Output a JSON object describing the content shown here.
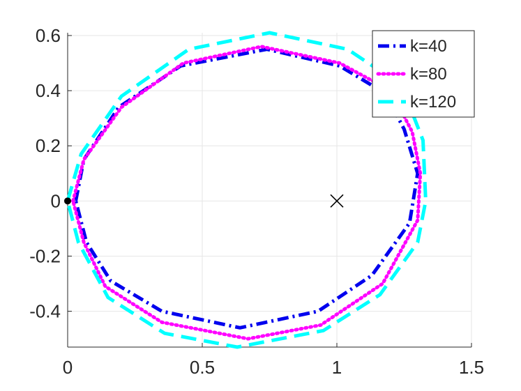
{
  "chart_data": {
    "type": "line",
    "title": "",
    "xlabel": "",
    "ylabel": "",
    "xlim": [
      0,
      1.5
    ],
    "ylim": [
      -0.53,
      0.61
    ],
    "grid": true,
    "legend_position": "top-right",
    "x_ticks": [
      {
        "value": 0,
        "label": "0"
      },
      {
        "value": 0.5,
        "label": "0.5"
      },
      {
        "value": 1,
        "label": "1"
      },
      {
        "value": 1.5,
        "label": "1.5"
      }
    ],
    "y_ticks": [
      {
        "value": -0.4,
        "label": "-0.4"
      },
      {
        "value": -0.2,
        "label": "-0.2"
      },
      {
        "value": 0,
        "label": "0"
      },
      {
        "value": 0.2,
        "label": "0.2"
      },
      {
        "value": 0.4,
        "label": "0.4"
      },
      {
        "value": 0.6,
        "label": "0.6"
      }
    ],
    "series": [
      {
        "name": "k=40",
        "color": "#0000ee",
        "style": "dashdot",
        "points": [
          [
            0.03,
            0.0
          ],
          [
            0.06,
            0.15
          ],
          [
            0.19,
            0.34
          ],
          [
            0.42,
            0.49
          ],
          [
            0.74,
            0.55
          ],
          [
            1.01,
            0.49
          ],
          [
            1.18,
            0.39
          ],
          [
            1.25,
            0.26
          ],
          [
            1.3,
            0.1
          ],
          [
            1.27,
            -0.08
          ],
          [
            1.13,
            -0.27
          ],
          [
            0.93,
            -0.4
          ],
          [
            0.64,
            -0.46
          ],
          [
            0.35,
            -0.4
          ],
          [
            0.16,
            -0.29
          ],
          [
            0.07,
            -0.15
          ],
          [
            0.03,
            0.0
          ]
        ]
      },
      {
        "name": "k=80",
        "color": "#ff00ff",
        "style": "dotted",
        "points": [
          [
            0.02,
            0.0
          ],
          [
            0.06,
            0.15
          ],
          [
            0.2,
            0.34
          ],
          [
            0.43,
            0.5
          ],
          [
            0.72,
            0.56
          ],
          [
            1.01,
            0.5
          ],
          [
            1.2,
            0.4
          ],
          [
            1.28,
            0.25
          ],
          [
            1.31,
            0.1
          ],
          [
            1.3,
            -0.07
          ],
          [
            1.17,
            -0.3
          ],
          [
            0.94,
            -0.45
          ],
          [
            0.67,
            -0.5
          ],
          [
            0.35,
            -0.44
          ],
          [
            0.14,
            -0.31
          ],
          [
            0.06,
            -0.15
          ],
          [
            0.02,
            0.0
          ]
        ]
      },
      {
        "name": "k=120",
        "color": "#00ffff",
        "style": "dashed",
        "points": [
          [
            0.0,
            0.0
          ],
          [
            0.05,
            0.17
          ],
          [
            0.2,
            0.38
          ],
          [
            0.45,
            0.55
          ],
          [
            0.75,
            0.61
          ],
          [
            1.04,
            0.55
          ],
          [
            1.24,
            0.42
          ],
          [
            1.32,
            0.22
          ],
          [
            1.33,
            0.0
          ],
          [
            1.3,
            -0.15
          ],
          [
            1.16,
            -0.34
          ],
          [
            0.95,
            -0.47
          ],
          [
            0.63,
            -0.53
          ],
          [
            0.36,
            -0.48
          ],
          [
            0.15,
            -0.35
          ],
          [
            0.04,
            -0.15
          ],
          [
            0.0,
            0.0
          ]
        ]
      }
    ],
    "markers": [
      {
        "type": "dot",
        "x": 0,
        "y": 0,
        "color": "#000000"
      },
      {
        "type": "cross",
        "x": 1,
        "y": 0,
        "color": "#000000"
      }
    ]
  }
}
